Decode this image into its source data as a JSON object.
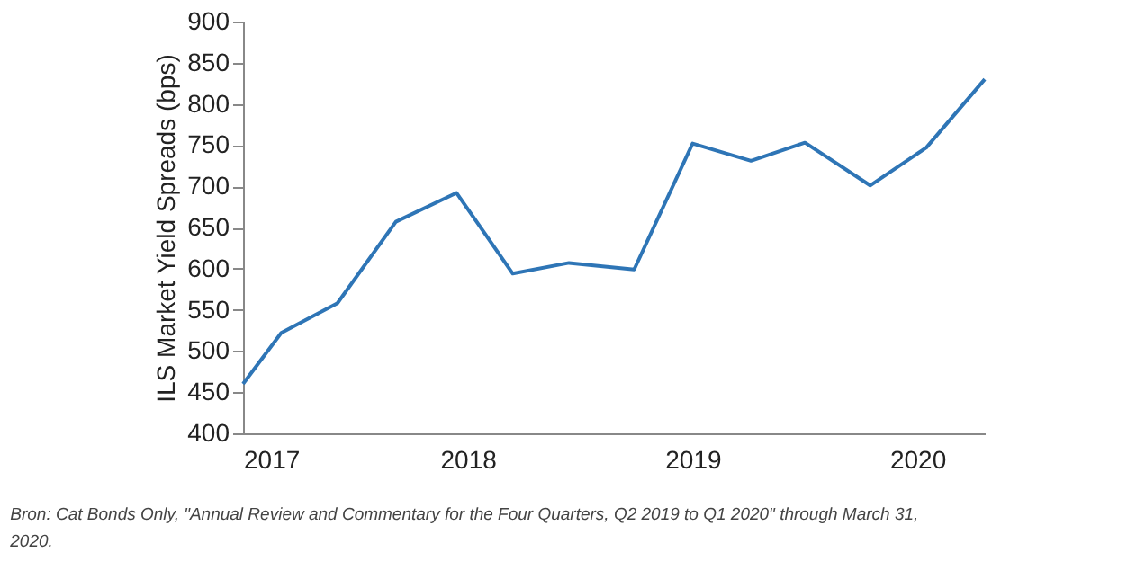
{
  "chart_data": {
    "type": "line",
    "ylabel": "ILS Market Yield Spreads (bps)",
    "x": [
      2017,
      2017.17,
      2017.42,
      2017.68,
      2017.95,
      2018.2,
      2018.45,
      2018.74,
      2019.0,
      2019.26,
      2019.5,
      2019.79,
      2020.04,
      2020.3
    ],
    "series": [
      {
        "color": "#2e75b6",
        "values": [
          460,
          522,
          558,
          657,
          692,
          594,
          607,
          599,
          752,
          731,
          753,
          701,
          747,
          830
        ]
      }
    ],
    "xlim": [
      2017,
      2020.3
    ],
    "xticks": [
      2017,
      2018,
      2019,
      2020
    ],
    "ylim": [
      400,
      900
    ],
    "yticks": [
      400,
      450,
      500,
      550,
      600,
      650,
      700,
      750,
      800,
      850,
      900
    ],
    "grid": false,
    "marker": "none",
    "line_style": "solid",
    "annotations": [
      "Bron: Cat Bonds Only, \"Annual Review and Commentary for the Four Quarters, Q2 2019 to Q1 2020\" through March 31, 2020."
    ]
  }
}
